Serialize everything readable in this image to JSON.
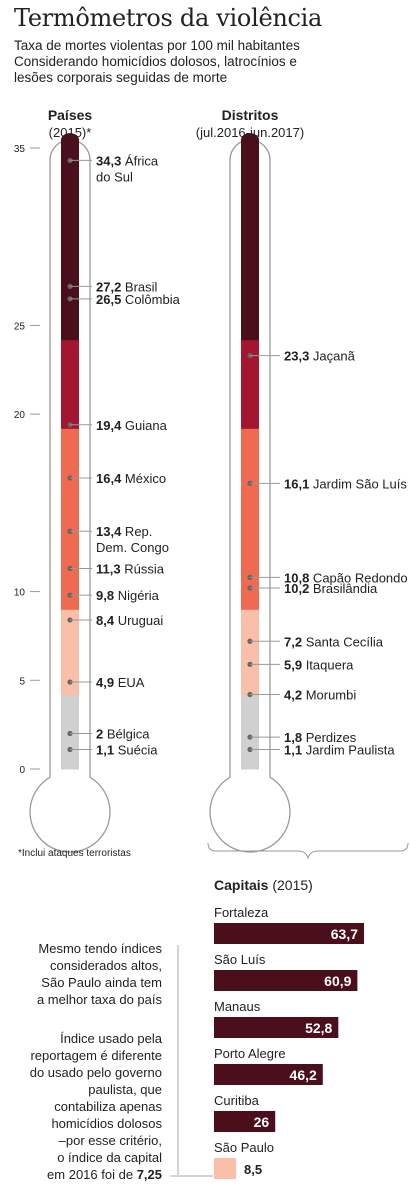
{
  "title": "Termômetros da violência",
  "subtitle": [
    "Taxa de mortes violentas por 100 mil habitantes",
    "Considerando homicídios dolosos, latrocínios e",
    "lesões corporais seguidas de morte"
  ],
  "footnote": "*Inclui ataques terroristas",
  "colors": {
    "c1": "#4a0f1a",
    "c2": "#a4152f",
    "c3": "#ef6a4f",
    "c4": "#f9bfa8",
    "c5": "#d0d0d0",
    "bar": "#4a0f1a",
    "bar_low": "#f9bfa8"
  },
  "chart_data": [
    {
      "type": "bar",
      "heading": "Países",
      "subheading": "(2015)*",
      "ylim": [
        0,
        35
      ],
      "yticks": [
        0,
        5,
        10,
        20,
        25,
        35
      ],
      "bands": [
        20,
        25
      ],
      "points": [
        {
          "value": 34.3,
          "label": "34,3",
          "name": [
            "África",
            "do Sul"
          ]
        },
        {
          "value": 27.2,
          "label": "27,2",
          "name": [
            "Brasil"
          ]
        },
        {
          "value": 26.5,
          "label": "26,5",
          "name": [
            "Colômbia"
          ]
        },
        {
          "value": 19.4,
          "label": "19,4",
          "name": [
            "Guiana"
          ]
        },
        {
          "value": 16.4,
          "label": "16,4",
          "name": [
            "México"
          ]
        },
        {
          "value": 13.4,
          "label": "13,4",
          "name": [
            "Rep.",
            "Dem. Congo"
          ]
        },
        {
          "value": 11.3,
          "label": "11,3",
          "name": [
            "Rússia"
          ]
        },
        {
          "value": 9.8,
          "label": "9,8",
          "name": [
            "Nigéria"
          ]
        },
        {
          "value": 8.4,
          "label": "8,4",
          "name": [
            "Uruguai"
          ]
        },
        {
          "value": 4.9,
          "label": "4,9",
          "name": [
            "EUA"
          ]
        },
        {
          "value": 2,
          "label": "2",
          "name": [
            "Bélgica"
          ]
        },
        {
          "value": 1.1,
          "label": "1,1",
          "name": [
            "Suécia"
          ]
        }
      ]
    },
    {
      "type": "bar",
      "heading": "Distritos",
      "subheading": "(jul.2016-jun.2017)",
      "ylim": [
        0,
        35
      ],
      "points": [
        {
          "value": 23.3,
          "label": "23,3",
          "name": [
            "Jaçanã"
          ]
        },
        {
          "value": 16.1,
          "label": "16,1",
          "name": [
            "Jardim São Luís"
          ]
        },
        {
          "value": 10.8,
          "label": "10,8",
          "name": [
            "Capão Redondo"
          ]
        },
        {
          "value": 10.2,
          "label": "10,2",
          "name": [
            "Brasilândia"
          ]
        },
        {
          "value": 7.2,
          "label": "7,2",
          "name": [
            "Santa Cecília"
          ]
        },
        {
          "value": 5.9,
          "label": "5,9",
          "name": [
            "Itaquera"
          ]
        },
        {
          "value": 4.2,
          "label": "4,2",
          "name": [
            "Morumbi"
          ]
        },
        {
          "value": 1.8,
          "label": "1,8",
          "name": [
            "Perdizes"
          ]
        },
        {
          "value": 1.1,
          "label": "1,1",
          "name": [
            "Jardim Paulista"
          ]
        }
      ]
    },
    {
      "type": "bar",
      "heading": "Capitais",
      "subheading": "(2015)",
      "categories": [
        "Fortaleza",
        "São Luís",
        "Manaus",
        "Porto Alegre",
        "Curitiba",
        "São Paulo"
      ],
      "values": [
        63.7,
        60.9,
        52.8,
        46.2,
        26,
        8.5
      ],
      "labels": [
        "63,7",
        "60,9",
        "52,8",
        "46,2",
        "26",
        "8,5"
      ],
      "xlim": [
        0,
        63.7
      ]
    }
  ],
  "notes": {
    "note1": [
      "Mesmo tendo índices",
      "considerados altos,",
      "São Paulo ainda tem",
      "a melhor taxa do país"
    ],
    "note2": [
      "Índice usado pela",
      "reportagem é diferente",
      "do usado pelo governo",
      "paulista, que",
      "contabiliza apenas",
      "homicídios dolosos",
      "–por esse critério,",
      "o índice da capital"
    ],
    "note2_last_prefix": "em 2016 foi de",
    "note2_last_value": "7,25"
  }
}
